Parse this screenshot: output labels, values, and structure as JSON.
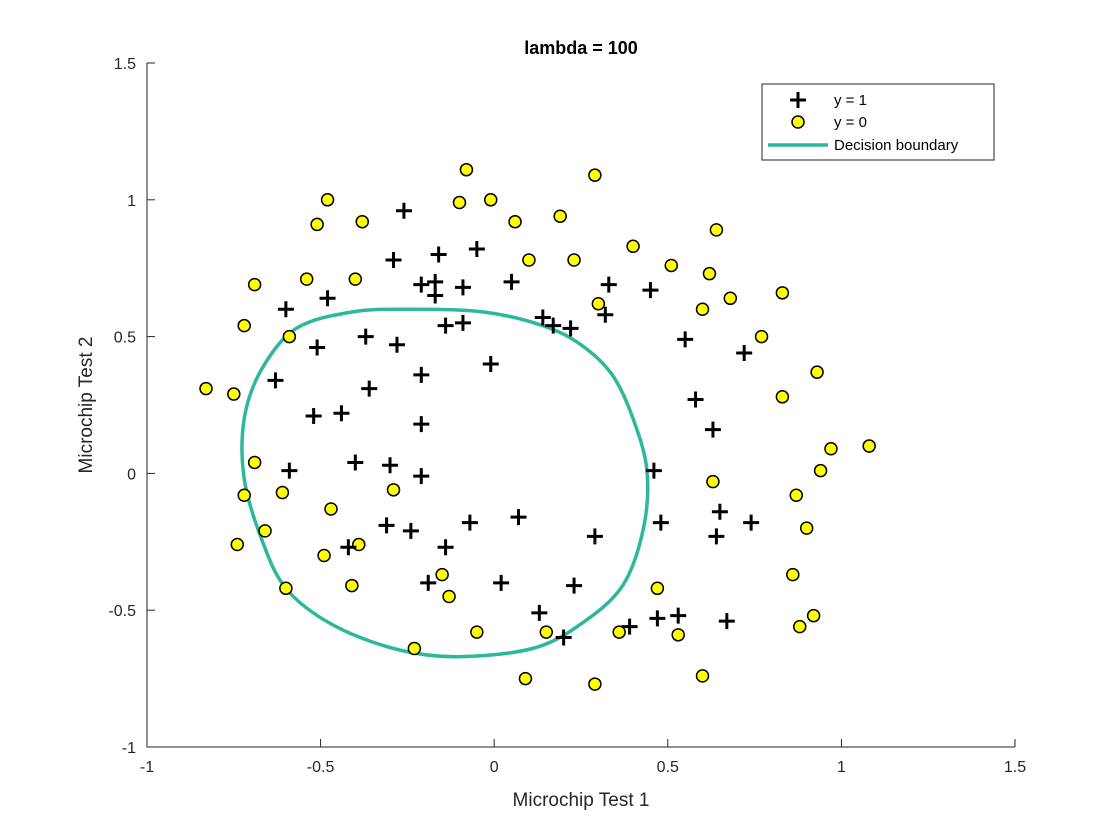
{
  "chart_data": {
    "type": "scatter",
    "title": "lambda = 100",
    "xlabel": "Microchip Test 1",
    "ylabel": "Microchip Test 2",
    "xlim": [
      -1,
      1.5
    ],
    "ylim": [
      -1,
      1.5
    ],
    "xticks": [
      -1,
      -0.5,
      0,
      0.5,
      1,
      1.5
    ],
    "yticks": [
      -1,
      -0.5,
      0,
      0.5,
      1,
      1.5
    ],
    "xtick_labels": [
      "-1",
      "-0.5",
      "0",
      "0.5",
      "1",
      "1.5"
    ],
    "ytick_labels": [
      "-1",
      "-0.5",
      "0",
      "0.5",
      "1",
      "1.5"
    ],
    "grid": false,
    "legend_position": "top-right",
    "colors": {
      "positive": "#000000",
      "negative_fill": "#ffff00",
      "boundary": "#2db89c"
    },
    "series": [
      {
        "name": "y = 1",
        "marker": "plus",
        "points": [
          [
            -0.26,
            0.96
          ],
          [
            -0.29,
            0.78
          ],
          [
            -0.16,
            0.8
          ],
          [
            -0.05,
            0.82
          ],
          [
            -0.17,
            0.7
          ],
          [
            -0.21,
            0.69
          ],
          [
            -0.17,
            0.65
          ],
          [
            -0.09,
            0.68
          ],
          [
            0.05,
            0.7
          ],
          [
            -0.48,
            0.64
          ],
          [
            -0.6,
            0.6
          ],
          [
            -0.51,
            0.46
          ],
          [
            -0.37,
            0.5
          ],
          [
            -0.28,
            0.47
          ],
          [
            -0.09,
            0.55
          ],
          [
            -0.14,
            0.54
          ],
          [
            0.14,
            0.57
          ],
          [
            0.22,
            0.53
          ],
          [
            0.17,
            0.54
          ],
          [
            0.33,
            0.69
          ],
          [
            0.32,
            0.58
          ],
          [
            0.45,
            0.67
          ],
          [
            0.55,
            0.49
          ],
          [
            0.72,
            0.44
          ],
          [
            -0.63,
            0.34
          ],
          [
            -0.36,
            0.31
          ],
          [
            -0.21,
            0.36
          ],
          [
            -0.01,
            0.4
          ],
          [
            -0.52,
            0.21
          ],
          [
            -0.44,
            0.22
          ],
          [
            -0.21,
            0.18
          ],
          [
            0.58,
            0.27
          ],
          [
            0.63,
            0.16
          ],
          [
            -0.59,
            0.01
          ],
          [
            -0.4,
            0.04
          ],
          [
            -0.3,
            0.03
          ],
          [
            -0.21,
            -0.01
          ],
          [
            0.46,
            0.01
          ],
          [
            -0.31,
            -0.19
          ],
          [
            -0.24,
            -0.21
          ],
          [
            -0.07,
            -0.18
          ],
          [
            0.07,
            -0.16
          ],
          [
            0.29,
            -0.23
          ],
          [
            0.65,
            -0.14
          ],
          [
            0.48,
            -0.18
          ],
          [
            0.74,
            -0.18
          ],
          [
            0.64,
            -0.23
          ],
          [
            -0.42,
            -0.27
          ],
          [
            -0.14,
            -0.27
          ],
          [
            -0.19,
            -0.4
          ],
          [
            0.02,
            -0.4
          ],
          [
            0.23,
            -0.41
          ],
          [
            0.13,
            -0.51
          ],
          [
            0.2,
            -0.6
          ],
          [
            0.39,
            -0.56
          ],
          [
            0.47,
            -0.53
          ],
          [
            0.53,
            -0.52
          ],
          [
            0.67,
            -0.54
          ]
        ]
      },
      {
        "name": "y = 0",
        "marker": "circle",
        "points": [
          [
            -0.08,
            1.11
          ],
          [
            -0.48,
            1.0
          ],
          [
            -0.51,
            0.91
          ],
          [
            -0.38,
            0.92
          ],
          [
            -0.1,
            0.99
          ],
          [
            -0.01,
            1.0
          ],
          [
            0.06,
            0.92
          ],
          [
            0.19,
            0.94
          ],
          [
            0.29,
            1.09
          ],
          [
            0.4,
            0.83
          ],
          [
            0.64,
            0.89
          ],
          [
            -0.54,
            0.71
          ],
          [
            -0.4,
            0.71
          ],
          [
            -0.69,
            0.69
          ],
          [
            0.1,
            0.78
          ],
          [
            0.23,
            0.78
          ],
          [
            0.51,
            0.76
          ],
          [
            0.62,
            0.73
          ],
          [
            0.68,
            0.64
          ],
          [
            0.83,
            0.66
          ],
          [
            0.6,
            0.6
          ],
          [
            0.3,
            0.62
          ],
          [
            -0.72,
            0.54
          ],
          [
            -0.59,
            0.5
          ],
          [
            0.77,
            0.5
          ],
          [
            -0.83,
            0.31
          ],
          [
            -0.75,
            0.29
          ],
          [
            0.93,
            0.37
          ],
          [
            0.83,
            0.28
          ],
          [
            -0.69,
            0.04
          ],
          [
            1.08,
            0.1
          ],
          [
            0.97,
            0.09
          ],
          [
            0.94,
            0.01
          ],
          [
            -0.72,
            -0.08
          ],
          [
            -0.61,
            -0.07
          ],
          [
            -0.29,
            -0.06
          ],
          [
            0.63,
            -0.03
          ],
          [
            0.87,
            -0.08
          ],
          [
            -0.47,
            -0.13
          ],
          [
            0.9,
            -0.2
          ],
          [
            -0.66,
            -0.21
          ],
          [
            -0.74,
            -0.26
          ],
          [
            -0.49,
            -0.3
          ],
          [
            -0.39,
            -0.26
          ],
          [
            -0.15,
            -0.37
          ],
          [
            -0.13,
            -0.45
          ],
          [
            -0.41,
            -0.41
          ],
          [
            -0.6,
            -0.42
          ],
          [
            0.47,
            -0.42
          ],
          [
            0.86,
            -0.37
          ],
          [
            -0.05,
            -0.58
          ],
          [
            0.15,
            -0.58
          ],
          [
            0.36,
            -0.58
          ],
          [
            0.53,
            -0.59
          ],
          [
            0.92,
            -0.52
          ],
          [
            0.88,
            -0.56
          ],
          [
            -0.23,
            -0.64
          ],
          [
            0.09,
            -0.75
          ],
          [
            0.29,
            -0.77
          ],
          [
            0.6,
            -0.74
          ]
        ]
      },
      {
        "name": "Decision boundary",
        "marker": "line",
        "closed": true,
        "points": [
          [
            -0.24,
            0.6
          ],
          [
            -0.03,
            0.59
          ],
          [
            0.14,
            0.54
          ],
          [
            0.25,
            0.47
          ],
          [
            0.34,
            0.36
          ],
          [
            0.4,
            0.2
          ],
          [
            0.44,
            0.01
          ],
          [
            0.43,
            -0.2
          ],
          [
            0.37,
            -0.41
          ],
          [
            0.25,
            -0.55
          ],
          [
            0.11,
            -0.64
          ],
          [
            -0.11,
            -0.67
          ],
          [
            -0.29,
            -0.64
          ],
          [
            -0.47,
            -0.55
          ],
          [
            -0.6,
            -0.42
          ],
          [
            -0.67,
            -0.24
          ],
          [
            -0.72,
            -0.02
          ],
          [
            -0.72,
            0.2
          ],
          [
            -0.67,
            0.38
          ],
          [
            -0.57,
            0.53
          ],
          [
            -0.41,
            0.59
          ]
        ]
      }
    ]
  }
}
